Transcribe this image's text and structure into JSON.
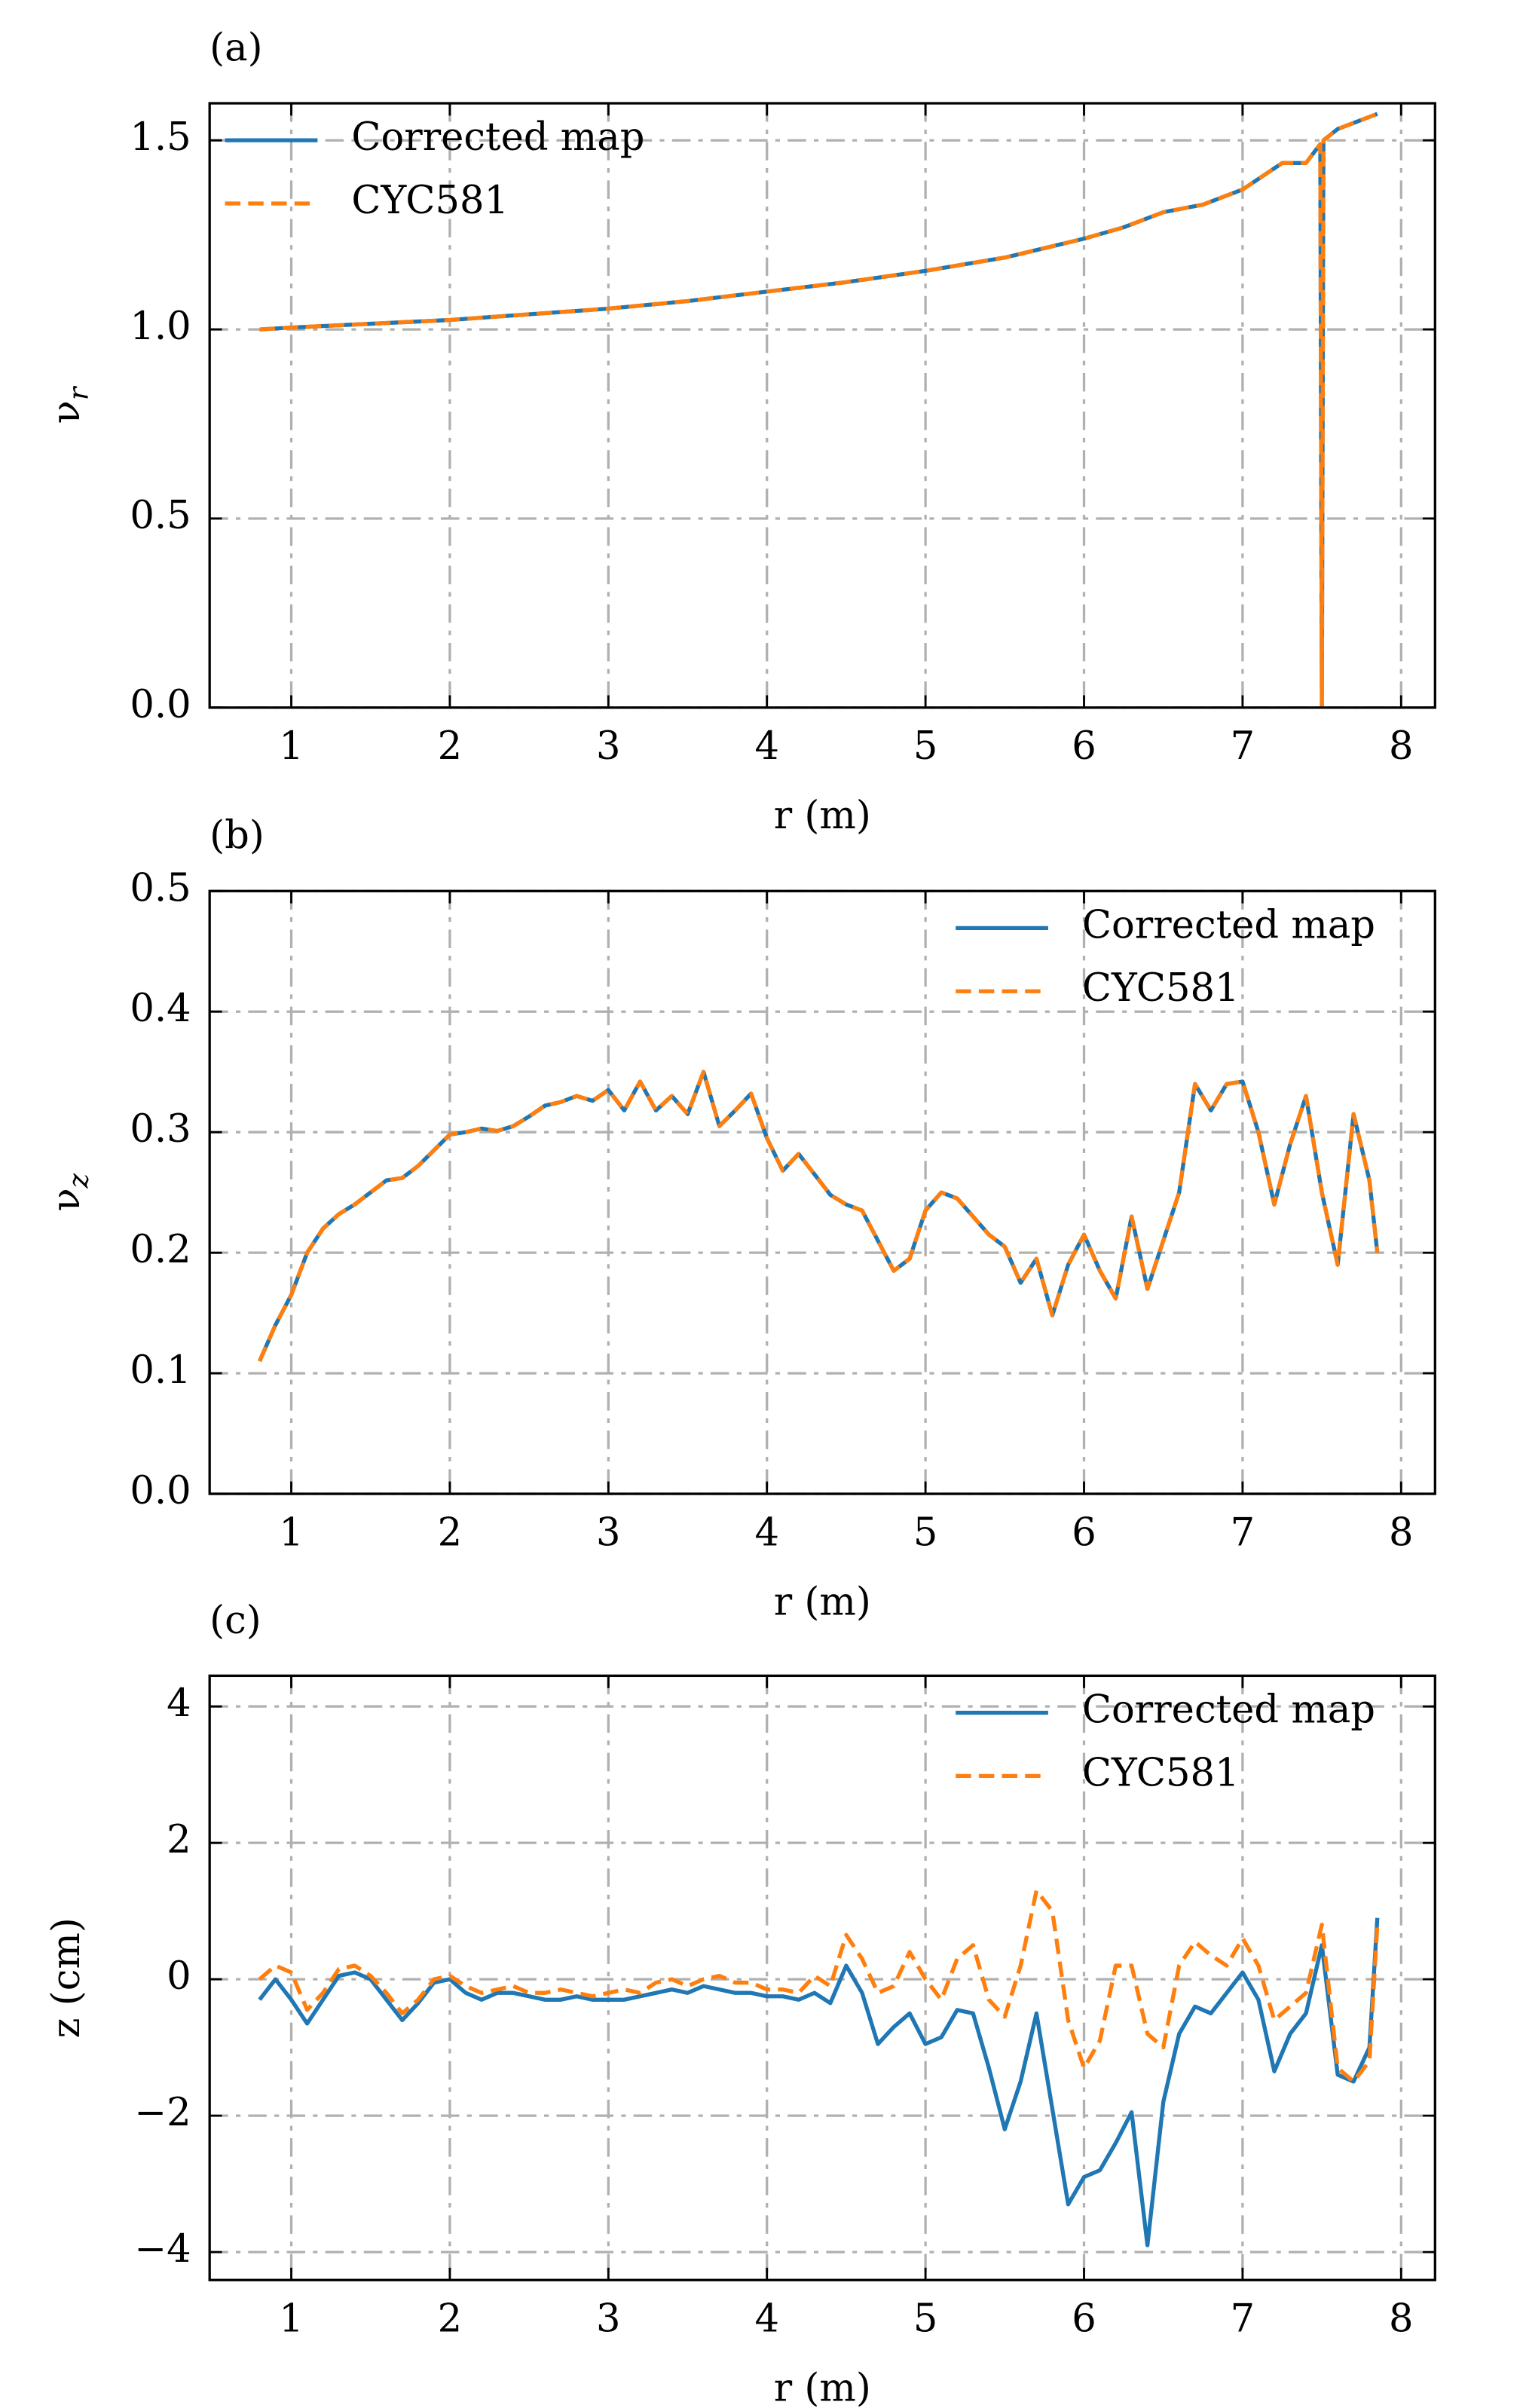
{
  "chart_data": [
    {
      "type": "line",
      "panel_label": "(a)",
      "xlabel": "r (m)",
      "ylabel": "ν",
      "ylabel_subscript": "r",
      "x": [
        0.8,
        1,
        1.5,
        2,
        2.5,
        3,
        3.5,
        4,
        4.5,
        5,
        5.5,
        6,
        6.25,
        6.5,
        6.75,
        7,
        7.25,
        7.4,
        7.49,
        7.5,
        7.51,
        7.6,
        7.85
      ],
      "series": [
        {
          "name": "Corrected map",
          "color": "#1f77b4",
          "dashed": false,
          "values": [
            1.0,
            1.005,
            1.015,
            1.025,
            1.04,
            1.055,
            1.075,
            1.1,
            1.125,
            1.155,
            1.19,
            1.24,
            1.27,
            1.31,
            1.33,
            1.37,
            1.44,
            1.44,
            1.49,
            0,
            1.5,
            1.53,
            1.57
          ]
        },
        {
          "name": "CYC581",
          "color": "#ff7f0e",
          "dashed": true,
          "values": [
            1.0,
            1.005,
            1.015,
            1.025,
            1.04,
            1.055,
            1.075,
            1.1,
            1.125,
            1.155,
            1.19,
            1.24,
            1.27,
            1.31,
            1.33,
            1.37,
            1.44,
            1.44,
            1.49,
            0,
            1.5,
            1.53,
            1.57
          ]
        }
      ],
      "xlim": [
        0.485,
        8.214
      ],
      "xticks": [
        1,
        2,
        3,
        4,
        5,
        6,
        7,
        8
      ],
      "ylim": [
        0,
        1.598
      ],
      "yticks": [
        {
          "value": 0,
          "label": "0.0"
        },
        0.5,
        {
          "value": 1,
          "label": "1.0"
        },
        1.5
      ],
      "grid": true,
      "legend": "upper left"
    },
    {
      "type": "line",
      "panel_label": "(b)",
      "xlabel": "r (m)",
      "ylabel": "ν",
      "ylabel_subscript": "z",
      "x": [
        0.8,
        0.9,
        1.0,
        1.1,
        1.2,
        1.3,
        1.4,
        1.5,
        1.6,
        1.7,
        1.8,
        1.9,
        2.0,
        2.1,
        2.2,
        2.3,
        2.4,
        2.5,
        2.6,
        2.7,
        2.8,
        2.9,
        3.0,
        3.1,
        3.2,
        3.3,
        3.4,
        3.5,
        3.6,
        3.7,
        3.8,
        3.9,
        4.0,
        4.1,
        4.2,
        4.3,
        4.4,
        4.5,
        4.6,
        4.7,
        4.8,
        4.9,
        5.0,
        5.1,
        5.2,
        5.3,
        5.4,
        5.5,
        5.6,
        5.7,
        5.8,
        5.9,
        6.0,
        6.1,
        6.2,
        6.3,
        6.4,
        6.5,
        6.6,
        6.7,
        6.8,
        6.9,
        7.0,
        7.1,
        7.2,
        7.3,
        7.4,
        7.5,
        7.6,
        7.7,
        7.8,
        7.85
      ],
      "series": [
        {
          "name": "Corrected map",
          "color": "#1f77b4",
          "dashed": false,
          "values": [
            0.11,
            0.14,
            0.165,
            0.2,
            0.22,
            0.232,
            0.24,
            0.25,
            0.26,
            0.262,
            0.272,
            0.285,
            0.298,
            0.3,
            0.303,
            0.301,
            0.305,
            0.313,
            0.322,
            0.325,
            0.33,
            0.326,
            0.335,
            0.318,
            0.342,
            0.318,
            0.33,
            0.315,
            0.35,
            0.305,
            0.318,
            0.332,
            0.295,
            0.268,
            0.282,
            0.265,
            0.248,
            0.24,
            0.235,
            0.21,
            0.185,
            0.195,
            0.235,
            0.25,
            0.245,
            0.23,
            0.215,
            0.205,
            0.175,
            0.195,
            0.148,
            0.19,
            0.215,
            0.185,
            0.162,
            0.23,
            0.17,
            0.21,
            0.25,
            0.34,
            0.318,
            0.34,
            0.342,
            0.3,
            0.24,
            0.29,
            0.33,
            0.25,
            0.19,
            0.315,
            0.26,
            0.2
          ]
        },
        {
          "name": "CYC581",
          "color": "#ff7f0e",
          "dashed": true,
          "values": [
            0.11,
            0.14,
            0.165,
            0.2,
            0.22,
            0.232,
            0.24,
            0.25,
            0.26,
            0.262,
            0.272,
            0.285,
            0.298,
            0.3,
            0.303,
            0.301,
            0.305,
            0.313,
            0.322,
            0.325,
            0.33,
            0.326,
            0.335,
            0.318,
            0.342,
            0.318,
            0.33,
            0.315,
            0.35,
            0.305,
            0.318,
            0.332,
            0.295,
            0.268,
            0.282,
            0.265,
            0.248,
            0.24,
            0.235,
            0.21,
            0.185,
            0.195,
            0.235,
            0.25,
            0.245,
            0.23,
            0.215,
            0.205,
            0.175,
            0.195,
            0.148,
            0.19,
            0.215,
            0.185,
            0.162,
            0.23,
            0.17,
            0.21,
            0.25,
            0.34,
            0.318,
            0.34,
            0.342,
            0.3,
            0.24,
            0.29,
            0.33,
            0.25,
            0.19,
            0.315,
            0.26,
            0.2
          ]
        }
      ],
      "xlim": [
        0.485,
        8.214
      ],
      "xticks": [
        1,
        2,
        3,
        4,
        5,
        6,
        7,
        8
      ],
      "ylim": [
        0,
        0.5
      ],
      "yticks": [
        {
          "value": 0,
          "label": "0.0"
        },
        0.1,
        0.2,
        0.3,
        0.4,
        0.5
      ],
      "grid": true,
      "legend": "upper right"
    },
    {
      "type": "line",
      "panel_label": "(c)",
      "xlabel": "r (m)",
      "ylabel": "z (cm)",
      "x": [
        0.8,
        0.9,
        1.0,
        1.1,
        1.2,
        1.3,
        1.4,
        1.5,
        1.6,
        1.7,
        1.8,
        1.9,
        2.0,
        2.1,
        2.2,
        2.3,
        2.4,
        2.5,
        2.6,
        2.7,
        2.8,
        2.9,
        3.0,
        3.1,
        3.2,
        3.3,
        3.4,
        3.5,
        3.6,
        3.7,
        3.8,
        3.9,
        4.0,
        4.1,
        4.2,
        4.3,
        4.4,
        4.5,
        4.6,
        4.7,
        4.8,
        4.9,
        5.0,
        5.1,
        5.2,
        5.3,
        5.4,
        5.5,
        5.6,
        5.7,
        5.8,
        5.9,
        6.0,
        6.1,
        6.2,
        6.3,
        6.4,
        6.5,
        6.6,
        6.7,
        6.8,
        6.9,
        7.0,
        7.1,
        7.2,
        7.3,
        7.4,
        7.5,
        7.6,
        7.7,
        7.8,
        7.85
      ],
      "series": [
        {
          "name": "Corrected map",
          "color": "#1f77b4",
          "dashed": false,
          "values": [
            -0.3,
            0.0,
            -0.3,
            -0.65,
            -0.3,
            0.05,
            0.1,
            0.0,
            -0.3,
            -0.6,
            -0.35,
            -0.05,
            0.0,
            -0.2,
            -0.3,
            -0.2,
            -0.2,
            -0.25,
            -0.3,
            -0.3,
            -0.25,
            -0.3,
            -0.3,
            -0.3,
            -0.25,
            -0.2,
            -0.15,
            -0.2,
            -0.1,
            -0.15,
            -0.2,
            -0.2,
            -0.25,
            -0.25,
            -0.3,
            -0.2,
            -0.35,
            0.2,
            -0.2,
            -0.95,
            -0.7,
            -0.5,
            -0.95,
            -0.85,
            -0.45,
            -0.5,
            -1.3,
            -2.2,
            -1.5,
            -0.5,
            -1.9,
            -3.3,
            -2.9,
            -2.8,
            -2.4,
            -1.95,
            -3.9,
            -1.8,
            -0.8,
            -0.4,
            -0.5,
            -0.2,
            0.1,
            -0.3,
            -1.35,
            -0.8,
            -0.5,
            0.5,
            -1.4,
            -1.5,
            -1.0,
            0.9
          ]
        },
        {
          "name": "CYC581",
          "color": "#ff7f0e",
          "dashed": true,
          "values": [
            0.0,
            0.2,
            0.1,
            -0.45,
            -0.2,
            0.15,
            0.2,
            0.05,
            -0.2,
            -0.5,
            -0.3,
            0.0,
            0.05,
            -0.1,
            -0.2,
            -0.15,
            -0.1,
            -0.2,
            -0.2,
            -0.15,
            -0.2,
            -0.25,
            -0.2,
            -0.15,
            -0.2,
            -0.05,
            0.0,
            -0.1,
            0.0,
            0.05,
            -0.05,
            -0.05,
            -0.15,
            -0.15,
            -0.2,
            0.05,
            -0.1,
            0.65,
            0.3,
            -0.2,
            -0.1,
            0.4,
            0.0,
            -0.3,
            0.3,
            0.5,
            -0.3,
            -0.55,
            0.2,
            1.3,
            1.0,
            -0.6,
            -1.3,
            -0.9,
            0.2,
            0.2,
            -0.8,
            -1.0,
            0.2,
            0.55,
            0.35,
            0.2,
            0.6,
            0.2,
            -0.6,
            -0.4,
            -0.2,
            0.8,
            -1.3,
            -1.5,
            -1.2,
            0.8
          ]
        }
      ],
      "xlim": [
        0.485,
        8.214
      ],
      "xticks": [
        1,
        2,
        3,
        4,
        5,
        6,
        7,
        8
      ],
      "ylim": [
        -4.41,
        4.45
      ],
      "yticks": [
        {
          "value": -4,
          "label": "−4"
        },
        {
          "value": -2,
          "label": "−2"
        },
        0,
        2,
        4
      ],
      "grid": true,
      "legend": "upper right"
    }
  ]
}
